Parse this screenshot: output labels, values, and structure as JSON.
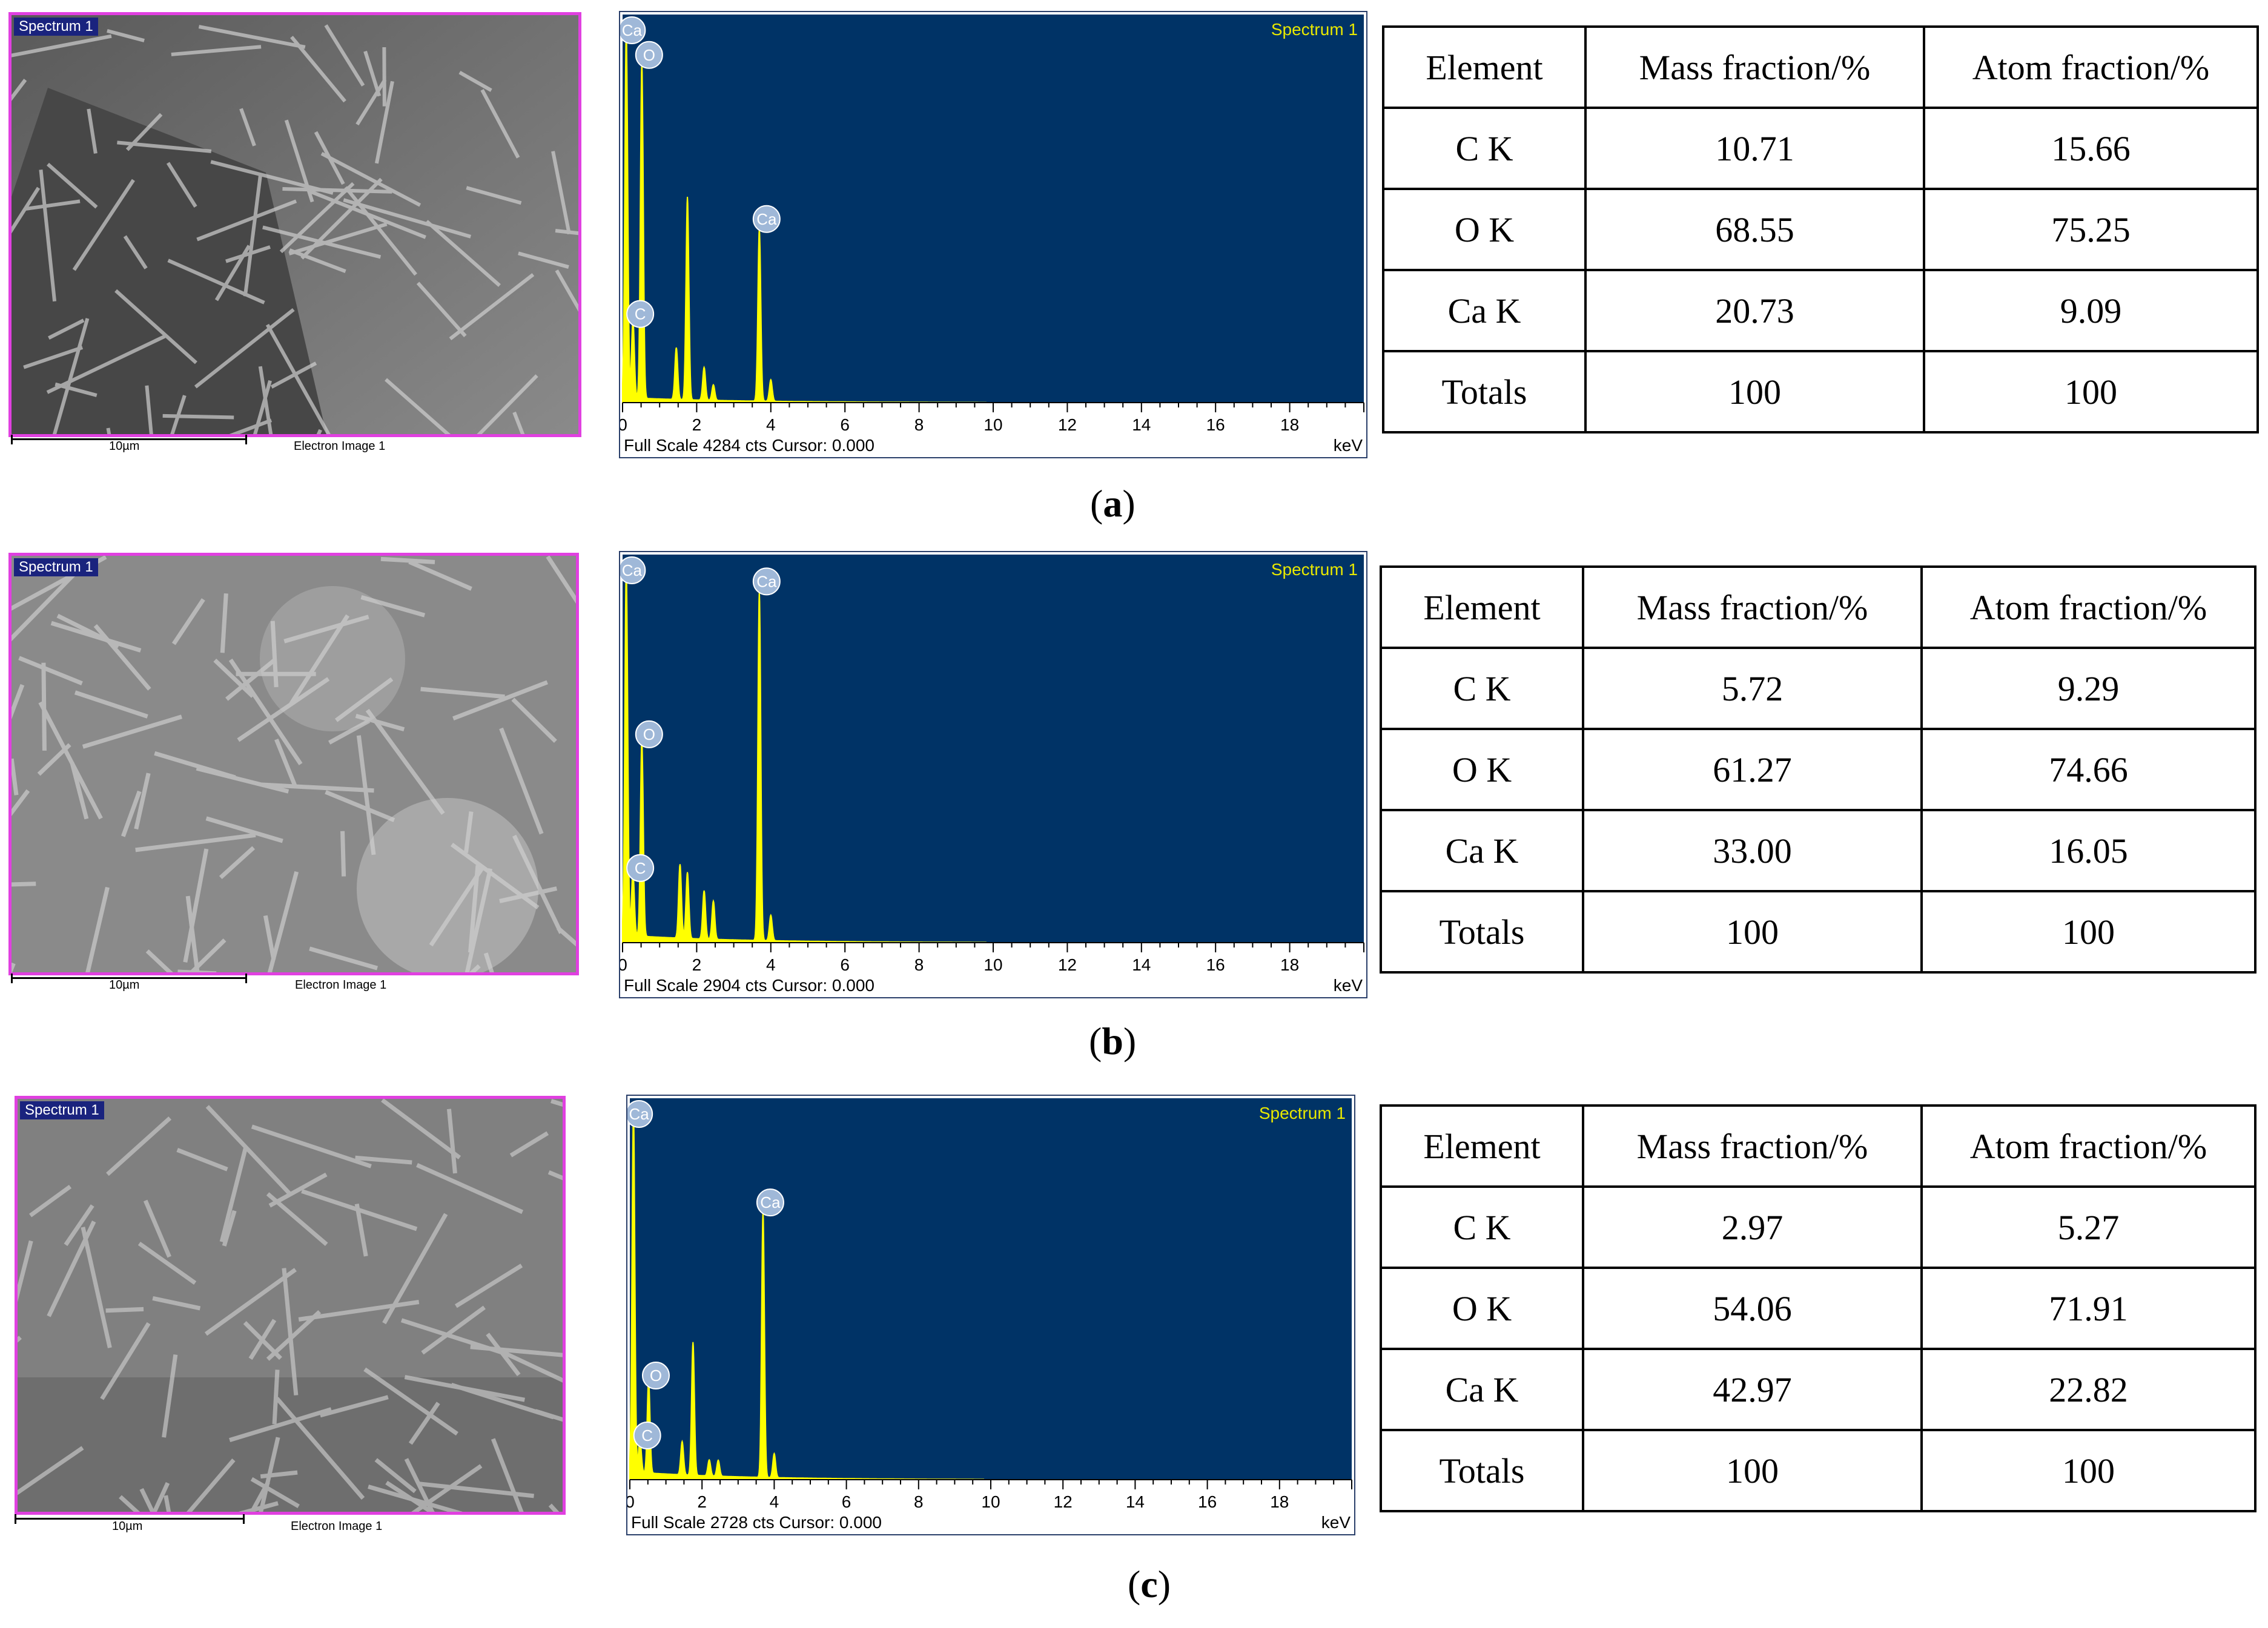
{
  "panels": [
    {
      "caption": "a",
      "sem": {
        "tag": "Spectrum 1",
        "scale": "10µm",
        "label": "Electron Image 1"
      },
      "spectrum": {
        "title": "Spectrum 1",
        "footer": "Full Scale 4284 cts Cursor: 0.000",
        "unit": "keV",
        "peak_labels": [
          "C",
          "O",
          "Ca",
          "Ca"
        ],
        "chart_data": {
          "type": "line",
          "title": "Spectrum 1",
          "xlabel": "keV",
          "xlim": [
            0,
            20
          ],
          "ylim": [
            0,
            4284
          ],
          "x_ticks": [
            0,
            2,
            4,
            6,
            8,
            10,
            12,
            14,
            16,
            18
          ],
          "series": [
            {
              "peaks": [
                [
                  0.1,
                  4284
                ],
                [
                  0.28,
                  900
                ],
                [
                  0.52,
                  3900
                ],
                [
                  1.75,
                  2350
                ],
                [
                  1.45,
                  600
                ],
                [
                  2.2,
                  380
                ],
                [
                  2.45,
                  180
                ],
                [
                  3.69,
                  2000
                ],
                [
                  4.0,
                  250
                ]
              ]
            }
          ]
        }
      },
      "table": {
        "headers": [
          "Element",
          "Mass fraction/%",
          "Atom fraction/%"
        ],
        "rows": [
          [
            "C K",
            "10.71",
            "15.66"
          ],
          [
            "O K",
            "68.55",
            "75.25"
          ],
          [
            "Ca K",
            "20.73",
            "9.09"
          ],
          [
            "Totals",
            "100",
            "100"
          ]
        ]
      }
    },
    {
      "caption": "b",
      "sem": {
        "tag": "Spectrum 1",
        "scale": "10µm",
        "label": "Electron Image 1"
      },
      "spectrum": {
        "title": "Spectrum 1",
        "footer": "Full Scale 2904 cts Cursor: 0.000",
        "unit": "keV",
        "peak_labels": [
          "C",
          "O",
          "Ca",
          "Ca"
        ],
        "chart_data": {
          "type": "line",
          "title": "Spectrum 1",
          "xlabel": "keV",
          "xlim": [
            0,
            20
          ],
          "ylim": [
            0,
            2904
          ],
          "x_ticks": [
            0,
            2,
            4,
            6,
            8,
            10,
            12,
            14,
            16,
            18
          ],
          "series": [
            {
              "peaks": [
                [
                  0.1,
                  2904
                ],
                [
                  0.28,
                  500
                ],
                [
                  0.52,
                  1550
                ],
                [
                  1.55,
                  580
                ],
                [
                  1.75,
                  520
                ],
                [
                  2.2,
                  380
                ],
                [
                  2.45,
                  300
                ],
                [
                  3.69,
                  2750
                ],
                [
                  4.0,
                  200
                ]
              ]
            }
          ]
        }
      },
      "table": {
        "headers": [
          "Element",
          "Mass fraction/%",
          "Atom fraction/%"
        ],
        "rows": [
          [
            "C K",
            "5.72",
            "9.29"
          ],
          [
            "O K",
            "61.27",
            "74.66"
          ],
          [
            "Ca K",
            "33.00",
            "16.05"
          ],
          [
            "Totals",
            "100",
            "100"
          ]
        ]
      }
    },
    {
      "caption": "c",
      "sem": {
        "tag": "Spectrum 1",
        "scale": "10µm",
        "label": "Electron Image 1"
      },
      "spectrum": {
        "title": "Spectrum 1",
        "footer": "Full Scale 2728 cts Cursor: 0.000",
        "unit": "keV",
        "peak_labels": [
          "C",
          "O",
          "Ca",
          "Ca"
        ],
        "chart_data": {
          "type": "line",
          "title": "Spectrum 1",
          "xlabel": "keV",
          "xlim": [
            0,
            20
          ],
          "ylim": [
            0,
            2728
          ],
          "x_ticks": [
            0,
            2,
            4,
            6,
            8,
            10,
            12,
            14,
            16,
            18
          ],
          "series": [
            {
              "peaks": [
                [
                  0.1,
                  2728
                ],
                [
                  0.28,
                  250
                ],
                [
                  0.52,
                  700
                ],
                [
                  1.75,
                  1000
                ],
                [
                  1.45,
                  250
                ],
                [
                  2.2,
                  120
                ],
                [
                  2.45,
                  120
                ],
                [
                  3.69,
                  2000
                ],
                [
                  4.0,
                  180
                ]
              ]
            }
          ]
        }
      },
      "table": {
        "headers": [
          "Element",
          "Mass fraction/%",
          "Atom fraction/%"
        ],
        "rows": [
          [
            "C K",
            "2.97",
            "5.27"
          ],
          [
            "O K",
            "54.06",
            "71.91"
          ],
          [
            "Ca K",
            "42.97",
            "22.82"
          ],
          [
            "Totals",
            "100",
            "100"
          ]
        ]
      }
    }
  ]
}
